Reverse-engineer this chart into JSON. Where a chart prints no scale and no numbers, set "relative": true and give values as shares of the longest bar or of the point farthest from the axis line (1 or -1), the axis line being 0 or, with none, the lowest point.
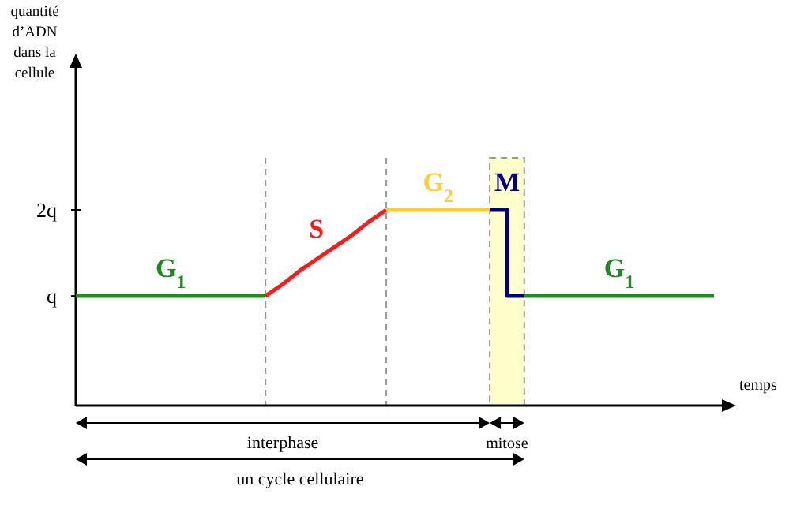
{
  "chart_data": {
    "type": "line",
    "xlabel": "temps",
    "relative": true,
    "categories": [
      null,
      null,
      null,
      null,
      null,
      null,
      null,
      null,
      null,
      null,
      null,
      null,
      null,
      null,
      null,
      null,
      null,
      null,
      null,
      null,
      null,
      null,
      null,
      null,
      null,
      null,
      null,
      null,
      null,
      null,
      null,
      null,
      null,
      null,
      null,
      null,
      null,
      null
    ],
    "marker": "none",
    "line_style": "solid",
    "series": [
      {
        "name": "G$_{1}$",
        "color": "#1f8a1f",
        "values": [
          0.56,
          0.56,
          0.56,
          0.56,
          0.56,
          0.56,
          0.56,
          0.56,
          0.56,
          0.56,
          0.56,
          0.56,
          null,
          null,
          null,
          null,
          null,
          null,
          null,
          null,
          null,
          null,
          null,
          null,
          null,
          null,
          null,
          null,
          null,
          null,
          null,
          null,
          null,
          null,
          null,
          null,
          null,
          null
        ]
      },
      {
        "name": "S",
        "color": "#ff1a1a",
        "values": [
          null,
          null,
          null,
          null,
          null,
          null,
          null,
          null,
          null,
          null,
          null,
          0.56,
          0.62,
          0.69,
          0.75,
          0.81,
          0.87,
          0.94,
          1,
          null,
          null,
          null,
          null,
          null,
          null,
          null,
          null,
          null,
          null,
          null,
          null,
          null,
          null,
          null,
          null,
          null,
          null,
          null
        ]
      },
      {
        "name": "G$_{2}$",
        "color": "#ffcc33",
        "values": [
          null,
          null,
          null,
          null,
          null,
          null,
          null,
          null,
          null,
          null,
          null,
          null,
          null,
          null,
          null,
          null,
          null,
          null,
          1,
          1,
          1,
          1,
          1,
          1,
          1,
          null,
          null,
          null,
          null,
          null,
          null,
          null,
          null,
          null,
          null,
          null,
          null,
          null
        ]
      },
      {
        "name": "M",
        "type": "step",
        "color": "#00007f",
        "values": [
          null,
          null,
          null,
          null,
          null,
          null,
          null,
          null,
          null,
          null,
          null,
          null,
          null,
          null,
          null,
          null,
          null,
          null,
          null,
          null,
          null,
          null,
          null,
          null,
          1,
          0.56,
          0.56,
          null,
          null,
          null,
          null,
          null,
          null,
          null,
          null,
          null,
          null,
          null
        ]
      },
      {
        "name": "G$_{1}$",
        "color": "#1f8a1f",
        "values": [
          null,
          null,
          null,
          null,
          null,
          null,
          null,
          null,
          null,
          null,
          null,
          null,
          null,
          null,
          null,
          null,
          null,
          null,
          null,
          null,
          null,
          null,
          null,
          null,
          null,
          null,
          0.56,
          0.56,
          0.56,
          0.56,
          0.56,
          0.56,
          0.56,
          0.56,
          0.56,
          0.56,
          0.56,
          0.56
        ]
      }
    ],
    "annotations": [
      "quantité d’ADN dans la cellule",
      "q",
      "2q",
      "interphase",
      "mitose",
      "un cycle cellulaire"
    ]
  }
}
